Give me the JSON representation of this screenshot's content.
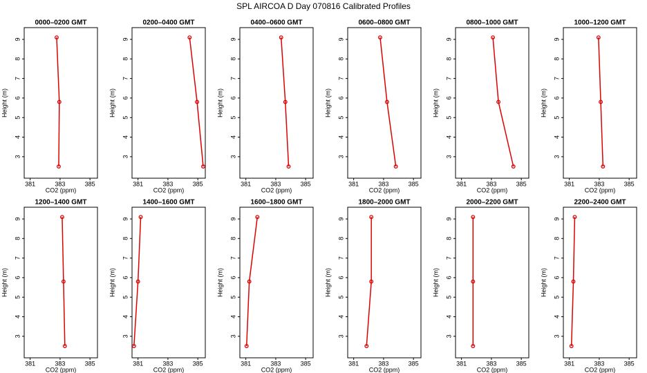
{
  "title": "SPL AIRCOA D  Day 070816  Calibrated Profiles",
  "chart_data": [
    {
      "type": "line",
      "title": "0000–0200 GMT",
      "xlabel": "CO2 (ppm)",
      "ylabel": "Height (m)",
      "xlim": [
        380.6,
        385.5
      ],
      "xticks": [
        381,
        383,
        385
      ],
      "ylim": [
        1.9,
        9.6
      ],
      "yticks": [
        3,
        4,
        5,
        6,
        7,
        8,
        9
      ],
      "series": [
        {
          "color": "#dd0000",
          "x": [
            382.91,
            382.95,
            382.77
          ],
          "values": [
            2.5,
            5.8,
            9.1
          ]
        }
      ]
    },
    {
      "type": "line",
      "title": "0200–0400 GMT",
      "xlabel": "CO2 (ppm)",
      "ylabel": "Height (m)",
      "xlim": [
        380.6,
        385.5
      ],
      "xticks": [
        381,
        383,
        385
      ],
      "ylim": [
        1.9,
        9.6
      ],
      "yticks": [
        3,
        4,
        5,
        6,
        7,
        8,
        9
      ],
      "series": [
        {
          "color": "#dd0000",
          "x": [
            385.36,
            384.95,
            384.45
          ],
          "values": [
            2.5,
            5.8,
            9.1
          ]
        }
      ]
    },
    {
      "type": "line",
      "title": "0400–0600 GMT",
      "xlabel": "CO2 (ppm)",
      "ylabel": "Height (m)",
      "xlim": [
        380.6,
        385.5
      ],
      "xticks": [
        381,
        383,
        385
      ],
      "ylim": [
        1.9,
        9.6
      ],
      "yticks": [
        3,
        4,
        5,
        6,
        7,
        8,
        9
      ],
      "series": [
        {
          "color": "#dd0000",
          "x": [
            383.86,
            383.64,
            383.36
          ],
          "values": [
            2.5,
            5.8,
            9.1
          ]
        }
      ]
    },
    {
      "type": "line",
      "title": "0600–0800 GMT",
      "xlabel": "CO2 (ppm)",
      "ylabel": "Height (m)",
      "xlim": [
        380.6,
        385.5
      ],
      "xticks": [
        381,
        383,
        385
      ],
      "ylim": [
        1.9,
        9.6
      ],
      "yticks": [
        3,
        4,
        5,
        6,
        7,
        8,
        9
      ],
      "series": [
        {
          "color": "#dd0000",
          "x": [
            383.82,
            383.23,
            382.77
          ],
          "values": [
            2.5,
            5.8,
            9.1
          ]
        }
      ]
    },
    {
      "type": "line",
      "title": "0800–1000 GMT",
      "xlabel": "CO2 (ppm)",
      "ylabel": "Height (m)",
      "xlim": [
        380.6,
        385.5
      ],
      "xticks": [
        381,
        383,
        385
      ],
      "ylim": [
        1.9,
        9.6
      ],
      "yticks": [
        3,
        4,
        5,
        6,
        7,
        8,
        9
      ],
      "series": [
        {
          "color": "#dd0000",
          "x": [
            384.47,
            383.47,
            383.1
          ],
          "values": [
            2.5,
            5.8,
            9.1
          ]
        }
      ]
    },
    {
      "type": "line",
      "title": "1000–1200 GMT",
      "xlabel": "CO2 (ppm)",
      "ylabel": "Height (m)",
      "xlim": [
        380.6,
        385.5
      ],
      "xticks": [
        381,
        383,
        385
      ],
      "ylim": [
        1.9,
        9.6
      ],
      "yticks": [
        3,
        4,
        5,
        6,
        7,
        8,
        9
      ],
      "series": [
        {
          "color": "#dd0000",
          "x": [
            383.25,
            383.1,
            382.95
          ],
          "values": [
            2.5,
            5.8,
            9.1
          ]
        }
      ]
    },
    {
      "type": "line",
      "title": "1200–1400 GMT",
      "xlabel": "CO2 (ppm)",
      "ylabel": "Height (m)",
      "xlim": [
        380.6,
        385.5
      ],
      "xticks": [
        381,
        383,
        385
      ],
      "ylim": [
        1.9,
        9.6
      ],
      "yticks": [
        3,
        4,
        5,
        6,
        7,
        8,
        9
      ],
      "series": [
        {
          "color": "#dd0000",
          "x": [
            383.32,
            383.23,
            383.14
          ],
          "values": [
            2.5,
            5.8,
            9.1
          ]
        }
      ]
    },
    {
      "type": "line",
      "title": "1400–1600 GMT",
      "xlabel": "CO2 (ppm)",
      "ylabel": "Height (m)",
      "xlim": [
        380.6,
        385.5
      ],
      "xticks": [
        381,
        383,
        385
      ],
      "ylim": [
        1.9,
        9.6
      ],
      "yticks": [
        3,
        4,
        5,
        6,
        7,
        8,
        9
      ],
      "series": [
        {
          "color": "#dd0000",
          "x": [
            380.73,
            381.0,
            381.18
          ],
          "values": [
            2.5,
            5.8,
            9.1
          ]
        }
      ]
    },
    {
      "type": "line",
      "title": "1600–1800 GMT",
      "xlabel": "CO2 (ppm)",
      "ylabel": "Height (m)",
      "xlim": [
        380.6,
        385.5
      ],
      "xticks": [
        381,
        383,
        385
      ],
      "ylim": [
        1.9,
        9.6
      ],
      "yticks": [
        3,
        4,
        5,
        6,
        7,
        8,
        9
      ],
      "series": [
        {
          "color": "#dd0000",
          "x": [
            381.05,
            381.23,
            381.77
          ],
          "values": [
            2.5,
            5.8,
            9.1
          ]
        }
      ]
    },
    {
      "type": "line",
      "title": "1800–2000 GMT",
      "xlabel": "CO2 (ppm)",
      "ylabel": "Height (m)",
      "xlim": [
        380.6,
        385.5
      ],
      "xticks": [
        381,
        383,
        385
      ],
      "ylim": [
        1.9,
        9.6
      ],
      "yticks": [
        3,
        4,
        5,
        6,
        7,
        8,
        9
      ],
      "series": [
        {
          "color": "#dd0000",
          "x": [
            381.86,
            382.18,
            382.18
          ],
          "values": [
            2.5,
            5.8,
            9.1
          ]
        }
      ]
    },
    {
      "type": "line",
      "title": "2000–2200 GMT",
      "xlabel": "CO2 (ppm)",
      "ylabel": "Height (m)",
      "xlim": [
        380.6,
        385.5
      ],
      "xticks": [
        381,
        383,
        385
      ],
      "ylim": [
        1.9,
        9.6
      ],
      "yticks": [
        3,
        4,
        5,
        6,
        7,
        8,
        9
      ],
      "series": [
        {
          "color": "#dd0000",
          "x": [
            381.77,
            381.77,
            381.77
          ],
          "values": [
            2.5,
            5.8,
            9.1
          ]
        }
      ]
    },
    {
      "type": "line",
      "title": "2200–2400 GMT",
      "xlabel": "CO2 (ppm)",
      "ylabel": "Height (m)",
      "xlim": [
        380.6,
        385.5
      ],
      "xticks": [
        381,
        383,
        385
      ],
      "ylim": [
        1.9,
        9.6
      ],
      "yticks": [
        3,
        4,
        5,
        6,
        7,
        8,
        9
      ],
      "series": [
        {
          "color": "#dd0000",
          "x": [
            381.14,
            381.27,
            381.36
          ],
          "values": [
            2.5,
            5.8,
            9.1
          ]
        }
      ]
    }
  ]
}
